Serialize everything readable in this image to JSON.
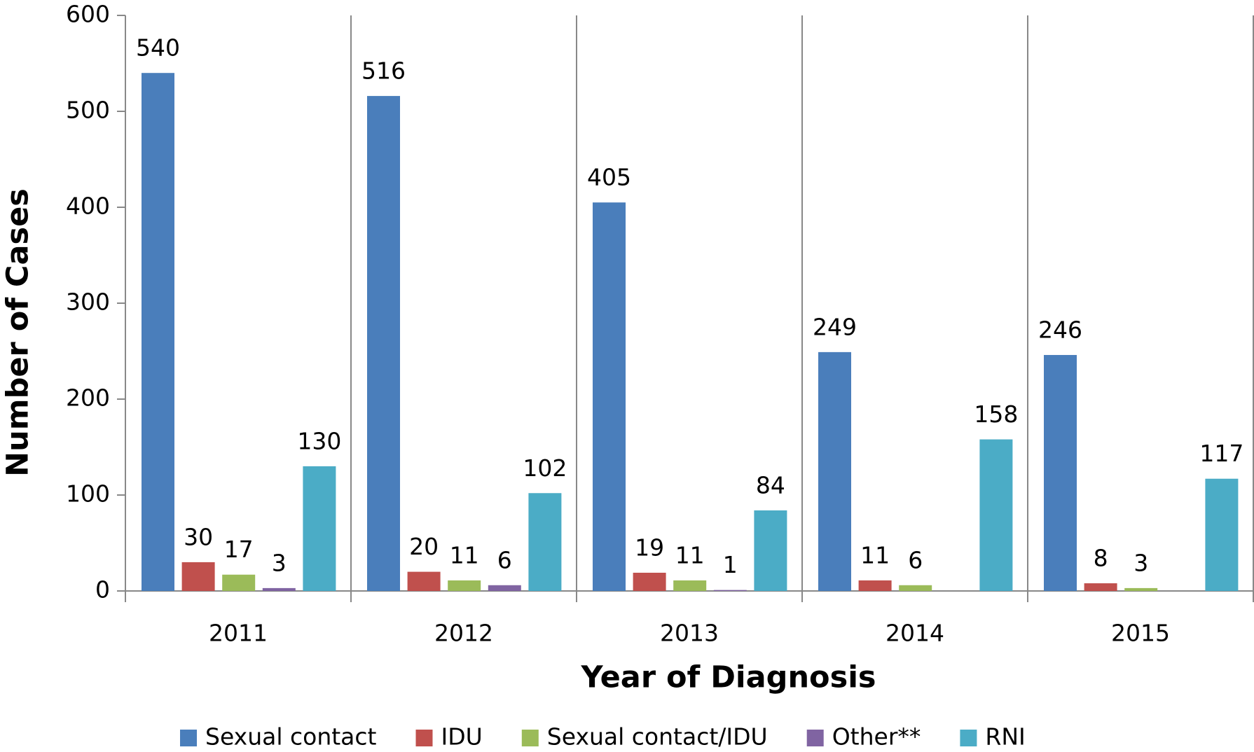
{
  "chart_data": {
    "type": "bar",
    "x_label": "Year of Diagnosis",
    "y_label": "Number of Cases",
    "categories": [
      "2011",
      "2012",
      "2013",
      "2014",
      "2015"
    ],
    "series": [
      {
        "name": "Sexual contact",
        "color": "#4a7ebb",
        "values": [
          540,
          516,
          405,
          249,
          246
        ]
      },
      {
        "name": "IDU",
        "color": "#c0504d",
        "values": [
          30,
          20,
          19,
          11,
          8
        ]
      },
      {
        "name": "Sexual contact/IDU",
        "color": "#9bbb59",
        "values": [
          17,
          11,
          11,
          6,
          3
        ]
      },
      {
        "name": "Other**",
        "color": "#8064a2",
        "values": [
          3,
          6,
          1,
          null,
          null
        ]
      },
      {
        "name": "RNI",
        "color": "#4bacc6",
        "values": [
          130,
          102,
          84,
          158,
          117
        ]
      }
    ],
    "ylim": [
      0,
      600
    ],
    "yticks": [
      0,
      100,
      200,
      300,
      400,
      500,
      600
    ],
    "legend": "bottom"
  }
}
